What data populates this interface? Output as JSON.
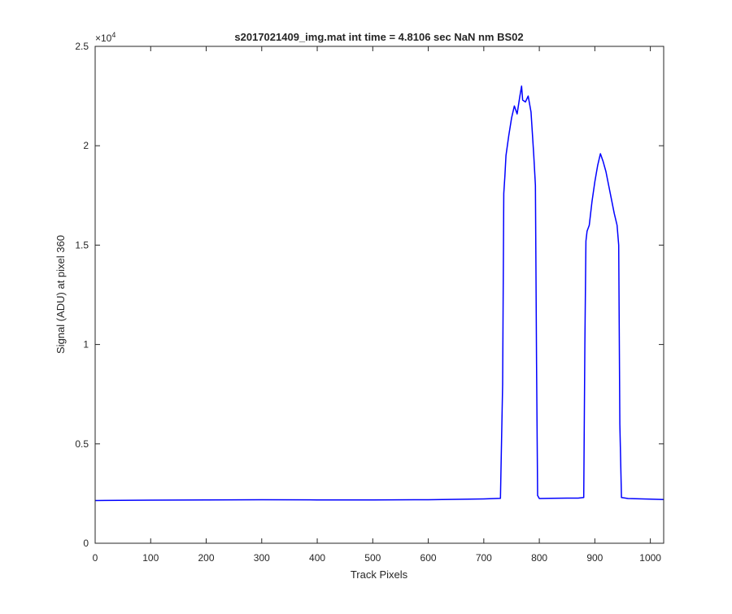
{
  "chart_data": {
    "type": "line",
    "title": "s2017021409_img.mat int time = 4.8106 sec  NaN nm BS02",
    "xlabel": "Track Pixels",
    "ylabel": "Signal (ADU) at pixel 360",
    "xlim": [
      0,
      1024
    ],
    "ylim": [
      0,
      25000
    ],
    "xticks": [
      0,
      100,
      200,
      300,
      400,
      500,
      600,
      700,
      800,
      900,
      1000
    ],
    "yticks": [
      0,
      5000,
      10000,
      15000,
      20000,
      25000
    ],
    "ytick_labels": [
      "0",
      "0.5",
      "1",
      "1.5",
      "2",
      "2.5"
    ],
    "y_exponent": "×10",
    "y_exponent_power": "4",
    "grid": false,
    "line_color": "#0000ff",
    "series": [
      {
        "x": [
          0,
          100,
          200,
          300,
          400,
          500,
          600,
          700,
          730,
          734,
          736,
          738,
          740,
          745,
          750,
          755,
          760,
          765,
          768,
          770,
          775,
          780,
          785,
          790,
          793,
          795,
          797,
          800,
          820,
          850,
          870,
          880,
          882,
          884,
          886,
          890,
          895,
          900,
          905,
          910,
          915,
          920,
          925,
          930,
          935,
          940,
          943,
          945,
          948,
          960,
          1000,
          1024
        ],
        "y": [
          2150,
          2170,
          2180,
          2190,
          2180,
          2180,
          2190,
          2230,
          2260,
          8000,
          17600,
          18500,
          19500,
          20500,
          21400,
          22000,
          21600,
          22500,
          23000,
          22300,
          22200,
          22500,
          21700,
          19500,
          18000,
          9000,
          2400,
          2250,
          2260,
          2270,
          2270,
          2300,
          10000,
          15200,
          15700,
          16000,
          17200,
          18200,
          19000,
          19600,
          19200,
          18700,
          18000,
          17300,
          16600,
          16000,
          15000,
          6000,
          2300,
          2250,
          2220,
          2200
        ]
      }
    ]
  }
}
